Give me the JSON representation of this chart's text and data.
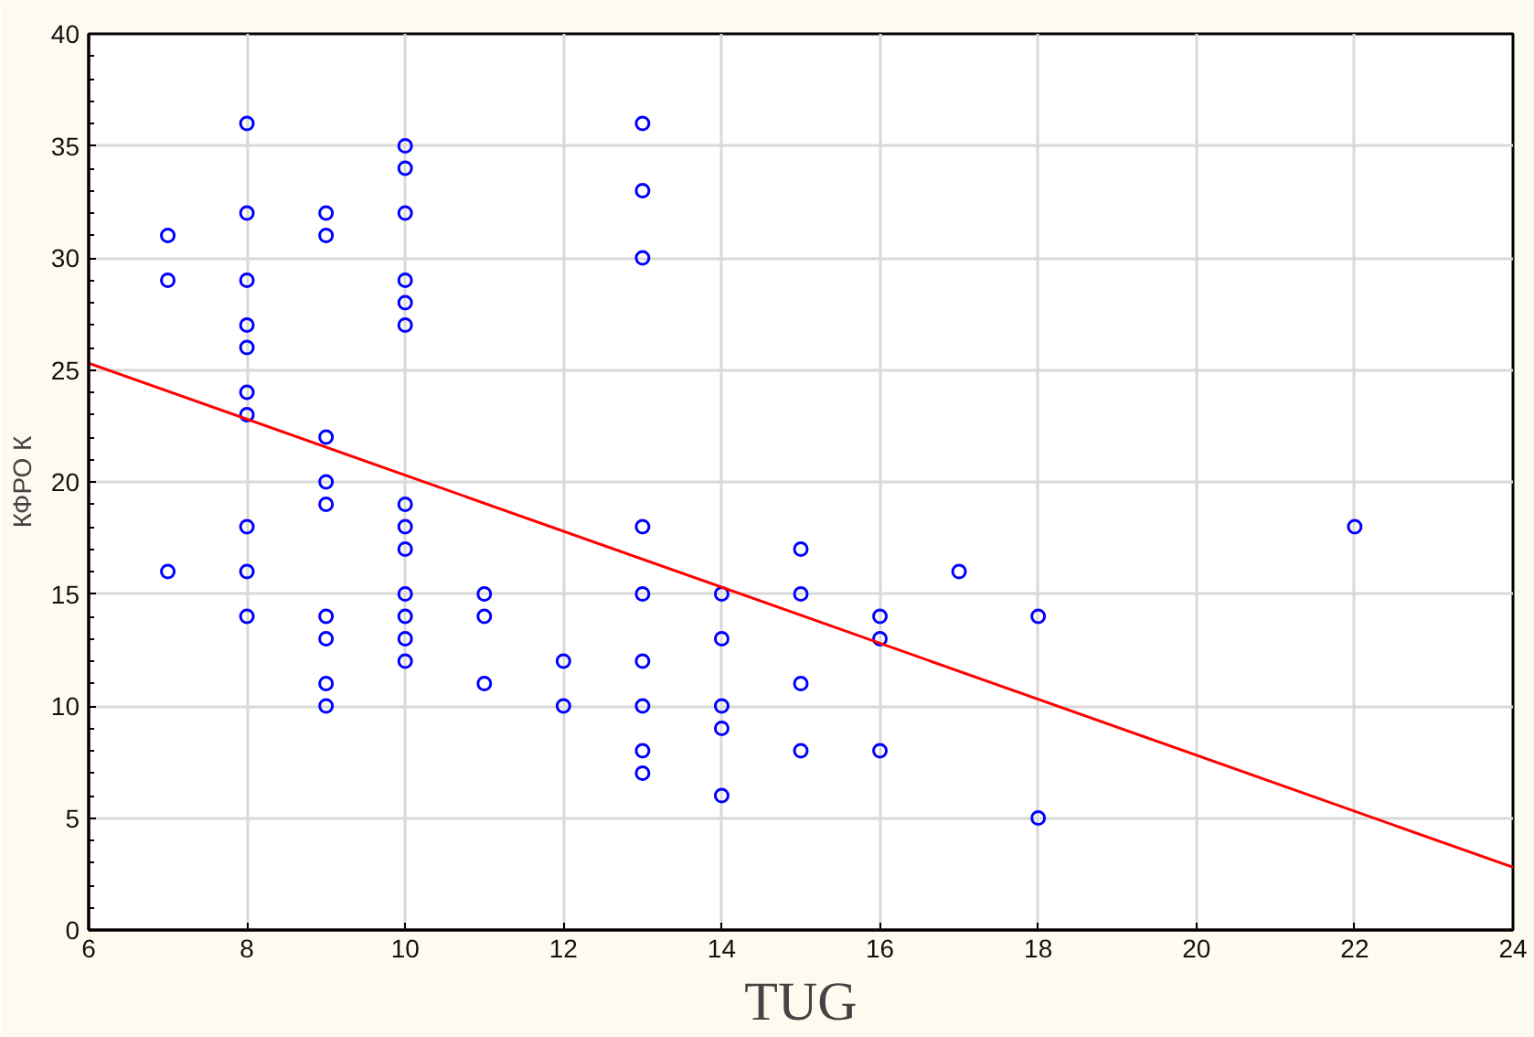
{
  "chart_data": {
    "type": "scatter",
    "xlabel": "TUG",
    "ylabel": "КФРО К",
    "xlim": [
      6,
      24
    ],
    "ylim": [
      0,
      40
    ],
    "xticks": [
      6,
      8,
      10,
      12,
      14,
      16,
      18,
      20,
      22,
      24
    ],
    "yticks": [
      0,
      5,
      10,
      15,
      20,
      25,
      30,
      35,
      40
    ],
    "grid": true,
    "marker": "circle",
    "series": [
      {
        "color": "#0000ff",
        "x": [
          7,
          7,
          7,
          8,
          8,
          8,
          8,
          8,
          8,
          8,
          8,
          8,
          8,
          9,
          9,
          9,
          9,
          9,
          9,
          9,
          9,
          9,
          10,
          10,
          10,
          10,
          10,
          10,
          10,
          10,
          10,
          10,
          10,
          10,
          10,
          11,
          11,
          11,
          12,
          12,
          13,
          13,
          13,
          13,
          13,
          13,
          13,
          13,
          13,
          14,
          14,
          14,
          14,
          14,
          15,
          15,
          15,
          15,
          16,
          16,
          16,
          17,
          18,
          18,
          22
        ],
        "values": [
          31,
          29,
          16,
          36,
          32,
          29,
          27,
          26,
          24,
          23,
          18,
          16,
          14,
          32,
          31,
          22,
          20,
          19,
          14,
          13,
          11,
          10,
          35,
          34,
          32,
          29,
          28,
          27,
          19,
          18,
          17,
          15,
          14,
          13,
          12,
          15,
          14,
          11,
          12,
          10,
          36,
          33,
          30,
          18,
          15,
          12,
          10,
          8,
          7,
          15,
          13,
          10,
          9,
          6,
          17,
          15,
          11,
          8,
          14,
          13,
          8,
          16,
          14,
          5,
          18
        ]
      },
      {
        "type": "line",
        "color": "#ff0000",
        "x": [
          6,
          24
        ],
        "values": [
          25.3,
          2.8
        ],
        "marker": "none",
        "line_style": "solid"
      }
    ]
  }
}
